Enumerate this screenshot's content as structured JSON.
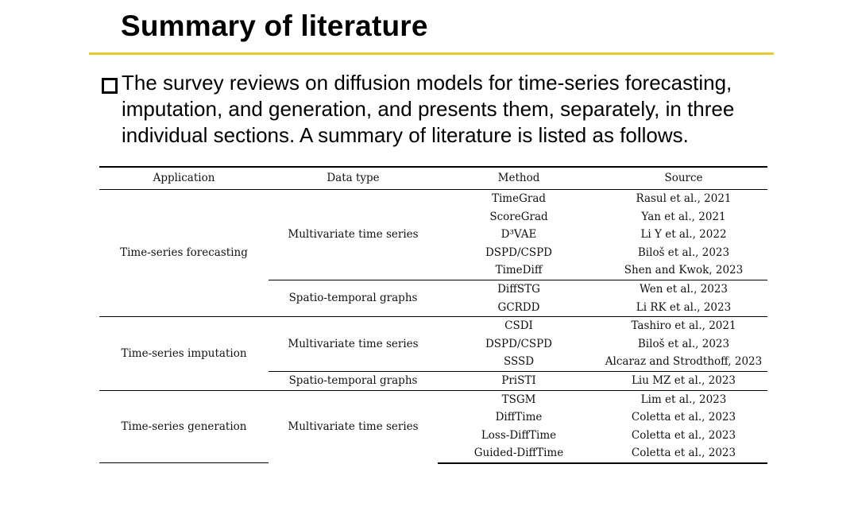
{
  "slide": {
    "title": "Summary of literature",
    "bullet": "The survey reviews on diffusion models for time-series forecasting, imputation, and generation, and presents them, separately, in three individual sections. A summary of literature is listed as follows."
  },
  "table": {
    "headers": [
      "Application",
      "Data type",
      "Method",
      "Source"
    ],
    "groups": [
      {
        "application": "Time-series forecasting",
        "subgroups": [
          {
            "data_type": "Multivariate time series",
            "rows": [
              {
                "method": "TimeGrad",
                "source": "Rasul et al., 2021"
              },
              {
                "method": "ScoreGrad",
                "source": "Yan et al., 2021"
              },
              {
                "method": "D³VAE",
                "source": "Li Y et al., 2022"
              },
              {
                "method": "DSPD/CSPD",
                "source": "Biloš et al., 2023"
              },
              {
                "method": "TimeDiff",
                "source": "Shen and Kwok, 2023"
              }
            ]
          },
          {
            "data_type": "Spatio-temporal graphs",
            "rows": [
              {
                "method": "DiffSTG",
                "source": "Wen et al., 2023"
              },
              {
                "method": "GCRDD",
                "source": "Li RK et al., 2023"
              }
            ]
          }
        ]
      },
      {
        "application": "Time-series imputation",
        "subgroups": [
          {
            "data_type": "Multivariate time series",
            "rows": [
              {
                "method": "CSDI",
                "source": "Tashiro et al., 2021"
              },
              {
                "method": "DSPD/CSPD",
                "source": "Biloš et al., 2023"
              },
              {
                "method": "SSSD",
                "source": "Alcaraz and Strodthoff, 2023"
              }
            ]
          },
          {
            "data_type": "Spatio-temporal graphs",
            "rows": [
              {
                "method": "PriSTI",
                "source": "Liu MZ et al., 2023"
              }
            ]
          }
        ]
      },
      {
        "application": "Time-series generation",
        "subgroups": [
          {
            "data_type": "Multivariate time series",
            "rows": [
              {
                "method": "TSGM",
                "source": "Lim et al., 2023"
              },
              {
                "method": "DiffTime",
                "source": "Coletta et al., 2023"
              },
              {
                "method": "Loss-DiffTime",
                "source": "Coletta et al., 2023"
              },
              {
                "method": "Guided-DiffTime",
                "source": "Coletta et al., 2023"
              }
            ]
          }
        ]
      }
    ]
  }
}
